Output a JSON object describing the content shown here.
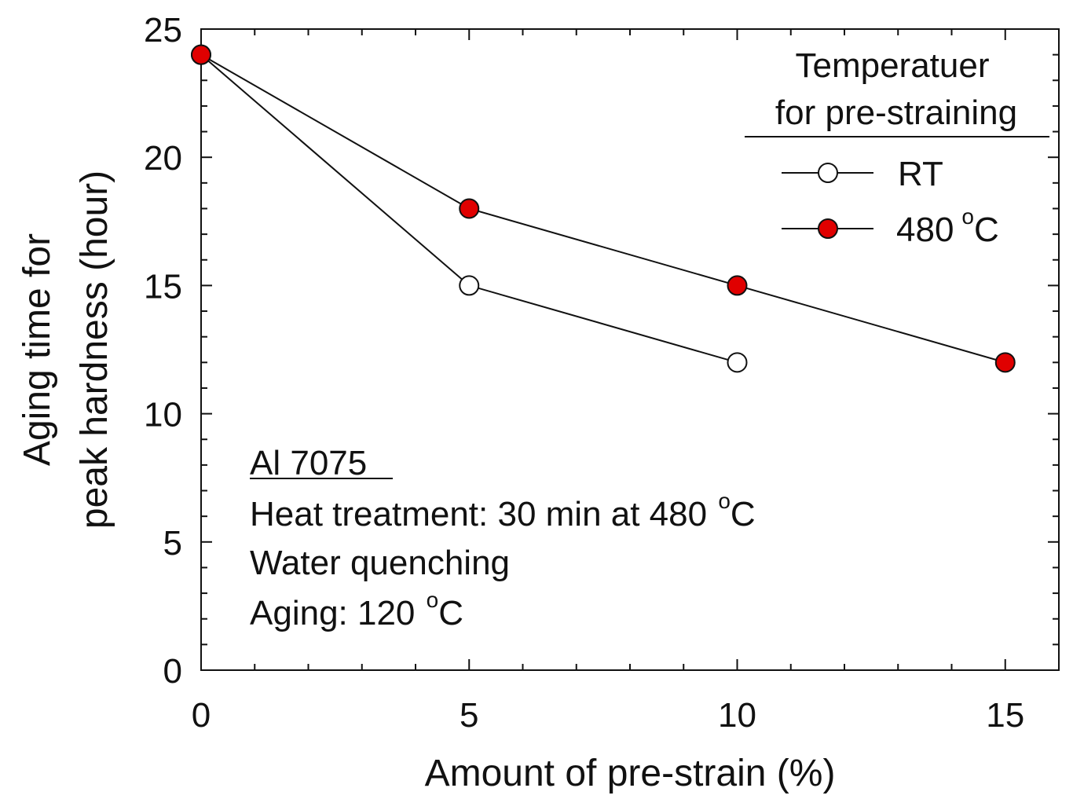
{
  "chart_data": {
    "type": "line",
    "x": [
      0,
      5,
      10,
      15
    ],
    "series": [
      {
        "name": "RT",
        "marker": "open-circle",
        "color": "#ffffff",
        "x": [
          0,
          5,
          10
        ],
        "values": [
          24,
          15,
          12
        ]
      },
      {
        "name": "480",
        "unit": "C",
        "superscript": "o",
        "marker": "filled-circle",
        "color": "#e00000",
        "x": [
          0,
          5,
          10,
          15
        ],
        "values": [
          24,
          18,
          15,
          12
        ]
      }
    ],
    "xlabel": "Amount of pre-strain (%)",
    "ylabel_line1": "Aging time for",
    "ylabel_line2": "peak hardness (hour)",
    "xlim": [
      0,
      16
    ],
    "ylim": [
      0,
      25
    ],
    "xticks": [
      0,
      5,
      10,
      15
    ],
    "xtick_labels": [
      "0",
      "5",
      "10",
      "15"
    ],
    "xminor_step": 1,
    "yticks": [
      0,
      5,
      10,
      15,
      20,
      25
    ],
    "ytick_labels": [
      "0",
      "5",
      "10",
      "15",
      "20",
      "25"
    ],
    "yminor_step": 1,
    "grid": false,
    "legend": {
      "title_line1": "Temperatuer",
      "title_line2": "for pre-straining",
      "placement": "top-right"
    },
    "annotation": {
      "title": "Al 7075",
      "line1_prefix": "Heat treatment: 30 min at 480 ",
      "line1_sup": "o",
      "line1_suffix": "C",
      "line2": "Water quenching",
      "line3_prefix": "Aging: 120 ",
      "line3_sup": "o",
      "line3_suffix": "C"
    }
  }
}
